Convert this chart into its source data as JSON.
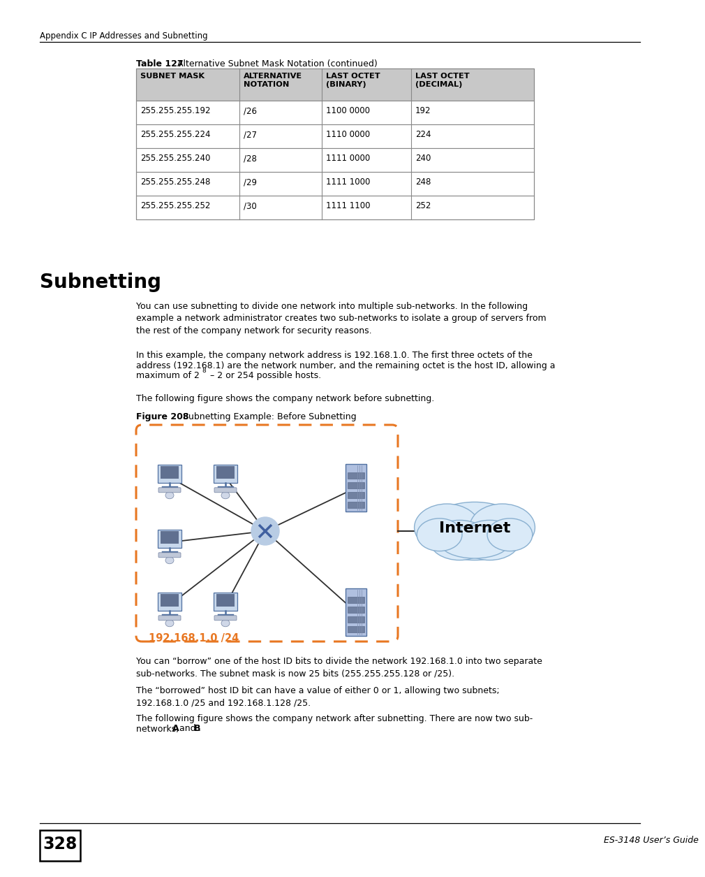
{
  "header_text": "Appendix C IP Addresses and Subnetting",
  "table_caption_bold": "Table 127",
  "table_caption_normal": "   Alternative Subnet Mask Notation (continued)",
  "table_headers": [
    "SUBNET MASK",
    "ALTERNATIVE\nNOTATION",
    "LAST OCTET\n(BINARY)",
    "LAST OCTET\n(DECIMAL)"
  ],
  "table_rows": [
    [
      "255.255.255.192",
      "/26",
      "1100 0000",
      "192"
    ],
    [
      "255.255.255.224",
      "/27",
      "1110 0000",
      "224"
    ],
    [
      "255.255.255.240",
      "/28",
      "1111 0000",
      "240"
    ],
    [
      "255.255.255.248",
      "/29",
      "1111 1000",
      "248"
    ],
    [
      "255.255.255.252",
      "/30",
      "1111 1100",
      "252"
    ]
  ],
  "section_title": "Subnetting",
  "para1": "You can use subnetting to divide one network into multiple sub-networks. In the following\nexample a network administrator creates two sub-networks to isolate a group of servers from\nthe rest of the company network for security reasons.",
  "para2_pre": "In this example, the company network address is 192.168.1.0. The first three octets of the\naddress (192.168.1) are the network number, and the remaining octet is the host ID, allowing a\nmaximum of 2",
  "para2_sup": "8",
  "para2_post": " – 2 or 254 possible hosts.",
  "para3": "The following figure shows the company network before subnetting.",
  "figure_caption_bold": "Figure 208",
  "figure_caption_normal": "   Subnetting Example: Before Subnetting",
  "network_label": "192.168.1.0 /24",
  "internet_label": "Internet",
  "para4": "You can “borrow” one of the host ID bits to divide the network 192.168.1.0 into two separate\nsub-networks. The subnet mask is now 25 bits (255.255.255.128 or /25).",
  "para5": "The “borrowed” host ID bit can have a value of either 0 or 1, allowing two subnets;\n192.168.1.0 /25 and 192.168.1.128 /25.",
  "para6_pre": "The following figure shows the company network after subnetting. There are now two sub-\nnetworks, ",
  "para6_A": "A",
  "para6_mid": " and ",
  "para6_B": "B",
  "para6_end": ".",
  "page_number": "328",
  "footer_text": "ES-3148 User’s Guide",
  "bg_color": "#ffffff",
  "table_header_bg": "#c8c8c8",
  "table_border": "#888888",
  "dashed_box_color": "#e87722",
  "hub_color": "#7090c0",
  "cloud_fill": "#daeaf8",
  "cloud_edge": "#8ab0d0",
  "line_color": "#303030"
}
